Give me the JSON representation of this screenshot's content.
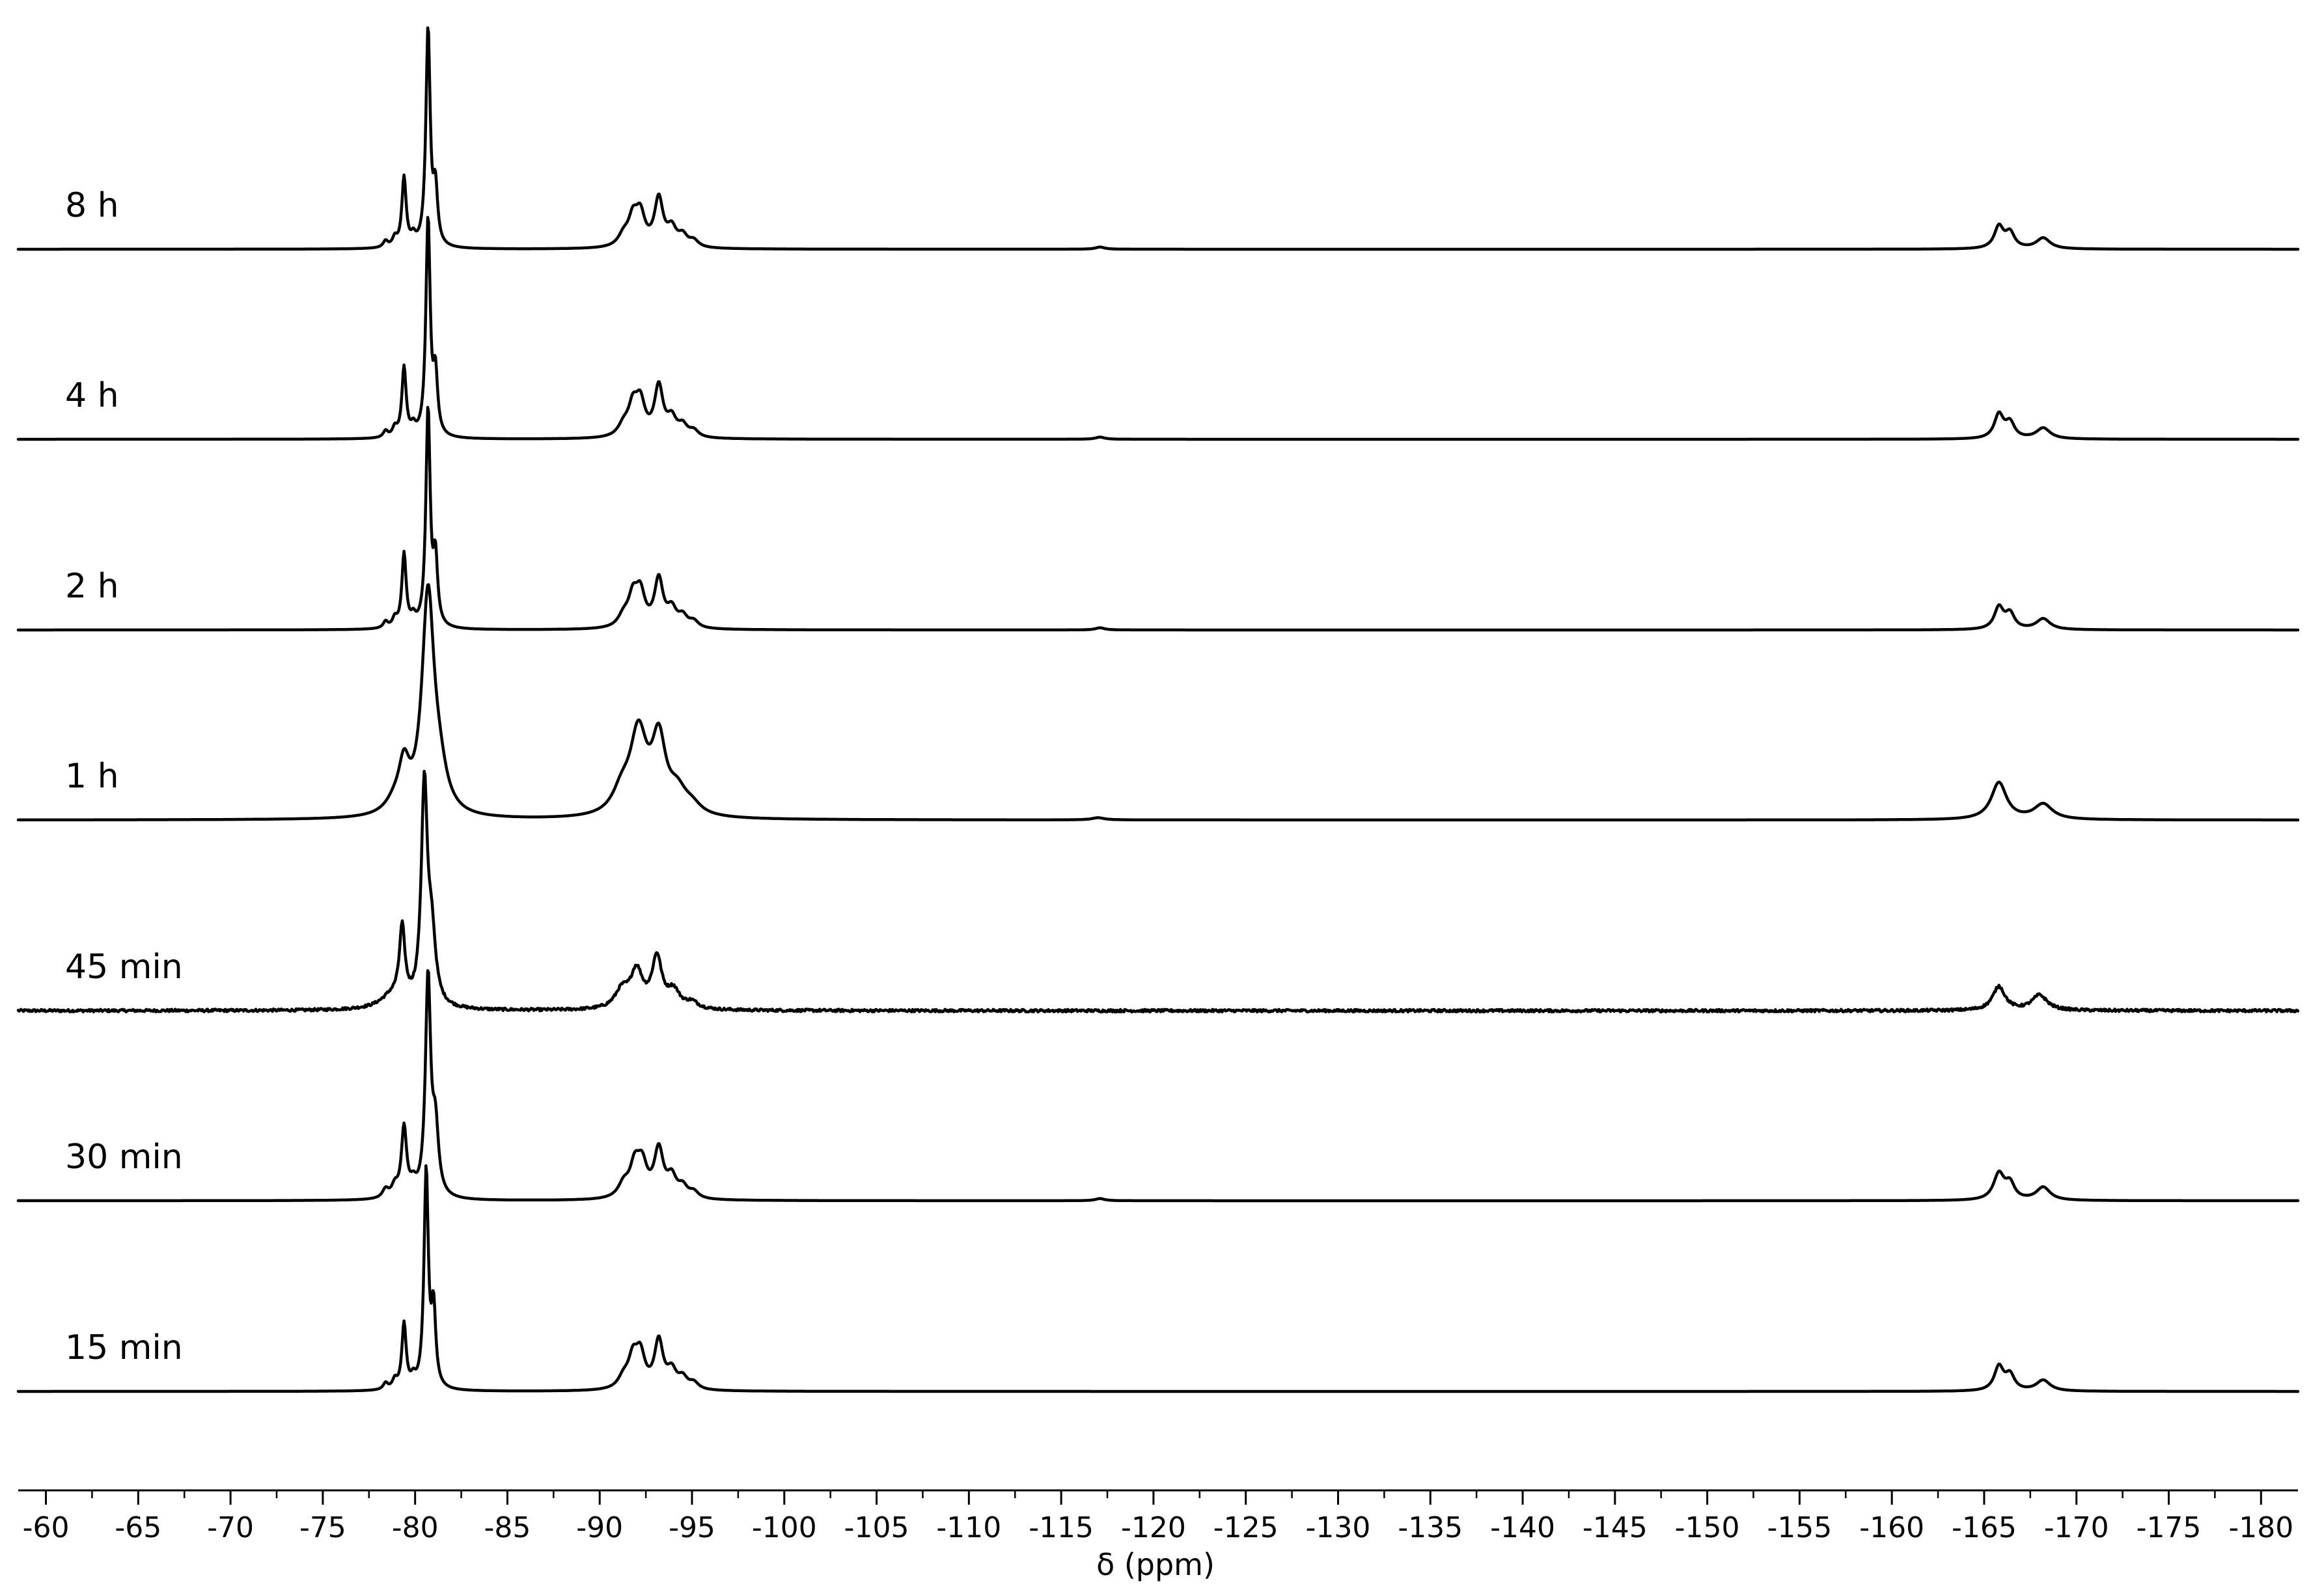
{
  "chart_data": {
    "type": "line",
    "subtype": "stacked-spectra",
    "title": "",
    "xlabel": "δ (ppm)",
    "ylabel": "",
    "xlim": [
      -58.5,
      -182
    ],
    "x_reversed": true,
    "grid": false,
    "legend": "none",
    "xticks": [
      -60,
      -65,
      -70,
      -75,
      -80,
      -85,
      -90,
      -95,
      -100,
      -105,
      -110,
      -115,
      -120,
      -125,
      -130,
      -135,
      -140,
      -145,
      -150,
      -155,
      -160,
      -165,
      -170,
      -175,
      -180
    ],
    "xtick_labels": [
      "-60",
      "-65",
      "-70",
      "-75",
      "-80",
      "-85",
      "-90",
      "-95",
      "-100",
      "-105",
      "-110",
      "-115",
      "-120",
      "-125",
      "-130",
      "-135",
      "-140",
      "-145",
      "-150",
      "-155",
      "-160",
      "-165",
      "-170",
      "-175",
      "-180"
    ],
    "series": [
      {
        "name": "8 h",
        "noise": 0,
        "peaks": [
          {
            "x": -78.4,
            "h": 0.03,
            "w": 0.15
          },
          {
            "x": -78.9,
            "h": 0.04,
            "w": 0.15
          },
          {
            "x": -79.4,
            "h": 0.32,
            "w": 0.14
          },
          {
            "x": -79.9,
            "h": 0.04,
            "w": 0.15
          },
          {
            "x": -80.7,
            "h": 1.0,
            "w": 0.14
          },
          {
            "x": -81.1,
            "h": 0.25,
            "w": 0.14
          },
          {
            "x": -91.3,
            "h": 0.05,
            "w": 0.35
          },
          {
            "x": -91.8,
            "h": 0.12,
            "w": 0.3
          },
          {
            "x": -92.2,
            "h": 0.14,
            "w": 0.3
          },
          {
            "x": -93.2,
            "h": 0.22,
            "w": 0.28
          },
          {
            "x": -93.9,
            "h": 0.08,
            "w": 0.3
          },
          {
            "x": -94.5,
            "h": 0.05,
            "w": 0.3
          },
          {
            "x": -95.1,
            "h": 0.03,
            "w": 0.3
          },
          {
            "x": -117.1,
            "h": 0.01,
            "w": 0.3
          },
          {
            "x": -165.8,
            "h": 0.1,
            "w": 0.3
          },
          {
            "x": -166.4,
            "h": 0.07,
            "w": 0.3
          },
          {
            "x": -168.2,
            "h": 0.05,
            "w": 0.45
          }
        ]
      },
      {
        "name": "4 h",
        "noise": 0,
        "peaks": [
          {
            "x": -78.4,
            "h": 0.03,
            "w": 0.15
          },
          {
            "x": -78.9,
            "h": 0.04,
            "w": 0.15
          },
          {
            "x": -79.4,
            "h": 0.32,
            "w": 0.14
          },
          {
            "x": -79.9,
            "h": 0.04,
            "w": 0.15
          },
          {
            "x": -80.7,
            "h": 1.0,
            "w": 0.14
          },
          {
            "x": -81.1,
            "h": 0.27,
            "w": 0.14
          },
          {
            "x": -91.3,
            "h": 0.05,
            "w": 0.35
          },
          {
            "x": -91.8,
            "h": 0.13,
            "w": 0.3
          },
          {
            "x": -92.2,
            "h": 0.15,
            "w": 0.3
          },
          {
            "x": -93.2,
            "h": 0.23,
            "w": 0.28
          },
          {
            "x": -93.9,
            "h": 0.08,
            "w": 0.3
          },
          {
            "x": -94.5,
            "h": 0.05,
            "w": 0.3
          },
          {
            "x": -95.1,
            "h": 0.03,
            "w": 0.3
          },
          {
            "x": -117.1,
            "h": 0.01,
            "w": 0.3
          },
          {
            "x": -165.8,
            "h": 0.11,
            "w": 0.3
          },
          {
            "x": -166.4,
            "h": 0.07,
            "w": 0.3
          },
          {
            "x": -168.2,
            "h": 0.05,
            "w": 0.45
          }
        ]
      },
      {
        "name": "2 h",
        "noise": 0,
        "peaks": [
          {
            "x": -78.4,
            "h": 0.03,
            "w": 0.15
          },
          {
            "x": -78.9,
            "h": 0.04,
            "w": 0.15
          },
          {
            "x": -79.4,
            "h": 0.34,
            "w": 0.14
          },
          {
            "x": -79.9,
            "h": 0.04,
            "w": 0.15
          },
          {
            "x": -80.7,
            "h": 1.0,
            "w": 0.14
          },
          {
            "x": -81.1,
            "h": 0.3,
            "w": 0.14
          },
          {
            "x": -91.3,
            "h": 0.05,
            "w": 0.35
          },
          {
            "x": -91.8,
            "h": 0.13,
            "w": 0.3
          },
          {
            "x": -92.2,
            "h": 0.15,
            "w": 0.3
          },
          {
            "x": -93.2,
            "h": 0.22,
            "w": 0.28
          },
          {
            "x": -93.9,
            "h": 0.08,
            "w": 0.3
          },
          {
            "x": -94.5,
            "h": 0.05,
            "w": 0.3
          },
          {
            "x": -95.1,
            "h": 0.03,
            "w": 0.3
          },
          {
            "x": -117.1,
            "h": 0.01,
            "w": 0.3
          },
          {
            "x": -165.8,
            "h": 0.1,
            "w": 0.3
          },
          {
            "x": -166.4,
            "h": 0.07,
            "w": 0.3
          },
          {
            "x": -168.2,
            "h": 0.05,
            "w": 0.45
          }
        ]
      },
      {
        "name": "1 h",
        "noise": 0,
        "peaks": [
          {
            "x": -78.9,
            "h": 0.05,
            "w": 0.6
          },
          {
            "x": -79.4,
            "h": 0.2,
            "w": 0.35
          },
          {
            "x": -80.7,
            "h": 1.0,
            "w": 0.4
          },
          {
            "x": -81.3,
            "h": 0.15,
            "w": 0.5
          },
          {
            "x": -91.2,
            "h": 0.1,
            "w": 0.6
          },
          {
            "x": -92.1,
            "h": 0.37,
            "w": 0.55
          },
          {
            "x": -93.2,
            "h": 0.33,
            "w": 0.45
          },
          {
            "x": -94.2,
            "h": 0.1,
            "w": 0.6
          },
          {
            "x": -95.0,
            "h": 0.04,
            "w": 0.6
          },
          {
            "x": -117.0,
            "h": 0.01,
            "w": 0.4
          },
          {
            "x": -165.8,
            "h": 0.17,
            "w": 0.5
          },
          {
            "x": -168.2,
            "h": 0.07,
            "w": 0.6
          }
        ]
      },
      {
        "name": "45 min",
        "noise": 0.012,
        "peaks": [
          {
            "x": -78.8,
            "h": 0.06,
            "w": 0.8
          },
          {
            "x": -79.3,
            "h": 0.33,
            "w": 0.18
          },
          {
            "x": -80.5,
            "h": 1.0,
            "w": 0.2
          },
          {
            "x": -80.9,
            "h": 0.3,
            "w": 0.25
          },
          {
            "x": -91.2,
            "h": 0.08,
            "w": 0.45
          },
          {
            "x": -92.0,
            "h": 0.17,
            "w": 0.4
          },
          {
            "x": -93.1,
            "h": 0.23,
            "w": 0.32
          },
          {
            "x": -94.0,
            "h": 0.08,
            "w": 0.4
          },
          {
            "x": -95.0,
            "h": 0.03,
            "w": 0.4
          },
          {
            "x": -165.8,
            "h": 0.11,
            "w": 0.4
          },
          {
            "x": -168.0,
            "h": 0.07,
            "w": 0.5
          }
        ]
      },
      {
        "name": "30 min",
        "noise": 0,
        "peaks": [
          {
            "x": -78.4,
            "h": 0.04,
            "w": 0.2
          },
          {
            "x": -78.9,
            "h": 0.05,
            "w": 0.2
          },
          {
            "x": -79.4,
            "h": 0.32,
            "w": 0.17
          },
          {
            "x": -79.9,
            "h": 0.05,
            "w": 0.2
          },
          {
            "x": -80.7,
            "h": 1.0,
            "w": 0.17
          },
          {
            "x": -81.1,
            "h": 0.3,
            "w": 0.2
          },
          {
            "x": -91.3,
            "h": 0.06,
            "w": 0.35
          },
          {
            "x": -91.9,
            "h": 0.14,
            "w": 0.32
          },
          {
            "x": -92.3,
            "h": 0.14,
            "w": 0.32
          },
          {
            "x": -93.2,
            "h": 0.22,
            "w": 0.3
          },
          {
            "x": -93.9,
            "h": 0.09,
            "w": 0.3
          },
          {
            "x": -94.5,
            "h": 0.05,
            "w": 0.3
          },
          {
            "x": -95.1,
            "h": 0.03,
            "w": 0.3
          },
          {
            "x": -117.1,
            "h": 0.01,
            "w": 0.3
          },
          {
            "x": -165.8,
            "h": 0.12,
            "w": 0.35
          },
          {
            "x": -166.4,
            "h": 0.07,
            "w": 0.3
          },
          {
            "x": -168.2,
            "h": 0.06,
            "w": 0.45
          }
        ]
      },
      {
        "name": "15 min",
        "noise": 0,
        "peaks": [
          {
            "x": -78.4,
            "h": 0.03,
            "w": 0.15
          },
          {
            "x": -78.9,
            "h": 0.04,
            "w": 0.15
          },
          {
            "x": -79.4,
            "h": 0.3,
            "w": 0.14
          },
          {
            "x": -79.9,
            "h": 0.04,
            "w": 0.15
          },
          {
            "x": -80.6,
            "h": 1.0,
            "w": 0.14
          },
          {
            "x": -81.0,
            "h": 0.35,
            "w": 0.14
          },
          {
            "x": -91.3,
            "h": 0.05,
            "w": 0.35
          },
          {
            "x": -91.8,
            "h": 0.13,
            "w": 0.3
          },
          {
            "x": -92.2,
            "h": 0.15,
            "w": 0.3
          },
          {
            "x": -93.2,
            "h": 0.22,
            "w": 0.28
          },
          {
            "x": -93.9,
            "h": 0.08,
            "w": 0.3
          },
          {
            "x": -94.5,
            "h": 0.05,
            "w": 0.3
          },
          {
            "x": -95.1,
            "h": 0.03,
            "w": 0.3
          },
          {
            "x": -165.8,
            "h": 0.11,
            "w": 0.3
          },
          {
            "x": -166.4,
            "h": 0.07,
            "w": 0.3
          },
          {
            "x": -168.2,
            "h": 0.05,
            "w": 0.45
          }
        ]
      }
    ]
  }
}
